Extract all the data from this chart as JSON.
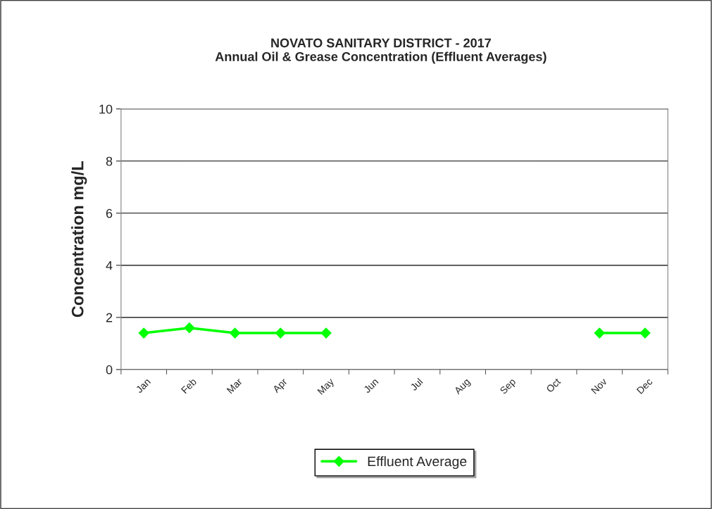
{
  "chart_data": {
    "type": "line",
    "title": "NOVATO SANITARY DISTRICT - 2017\nAnnual Oil & Grease Concentration (Effluent Averages)",
    "ylabel": "Concentration mg/L",
    "categories": [
      "Jan",
      "Feb",
      "Mar",
      "Apr",
      "May",
      "Jun",
      "Jul",
      "Aug",
      "Sep",
      "Oct",
      "Nov",
      "Dec"
    ],
    "series": [
      {
        "name": "Effluent Average",
        "color": "#00ff00",
        "values": [
          1.4,
          1.6,
          1.4,
          1.4,
          1.4,
          null,
          null,
          null,
          null,
          null,
          1.4,
          1.4
        ]
      }
    ],
    "ylim": [
      0,
      10
    ],
    "yticks": [
      0,
      2,
      4,
      6,
      8,
      10
    ],
    "grid": "y",
    "legend": "bottom",
    "marker": "diamond",
    "line_style": "solid"
  }
}
